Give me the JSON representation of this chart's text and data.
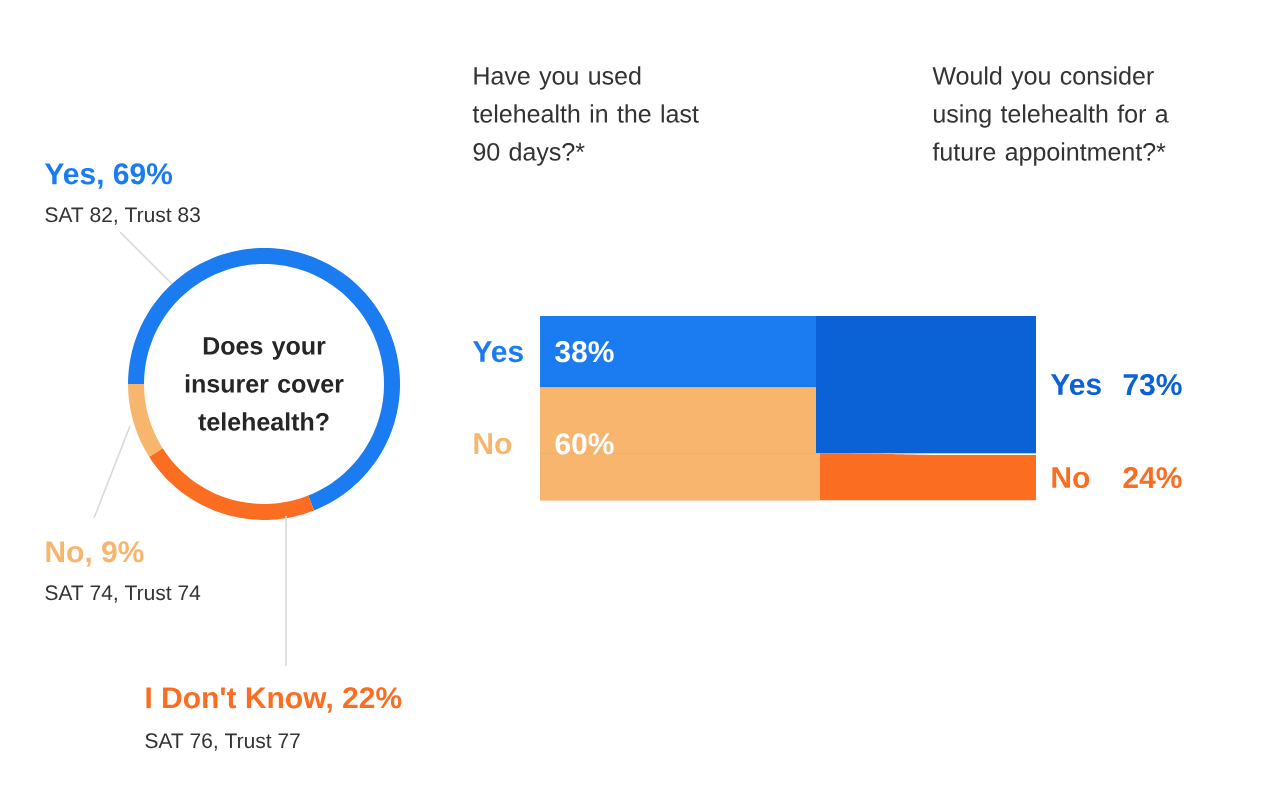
{
  "chart_data": [
    {
      "type": "donut",
      "title": "Does your insurer cover telehealth?",
      "categories": [
        "Yes, 69%",
        "I Don't Know, 22%",
        "No, 9%"
      ],
      "values": [
        69,
        22,
        9
      ],
      "colors": [
        "#1a7cf0",
        "#fb6e22",
        "#f8b56e"
      ],
      "annotations": [
        "SAT 82, Trust 83",
        "SAT 76, Trust 77",
        "SAT 74, Trust 74"
      ]
    },
    {
      "type": "other",
      "categories": [
        "Yes",
        "No"
      ],
      "series": [
        {
          "name": "Have you used telehealth in the last 90 days?*",
          "values": [
            38,
            60
          ],
          "value_labels": [
            "38%",
            "60%"
          ],
          "colors": [
            "#1a7cf0",
            "#f8b56e"
          ]
        },
        {
          "name": "Would you consider using telehealth for a future appointment?*",
          "values": [
            73,
            24
          ],
          "value_labels": [
            "73%",
            "24%"
          ],
          "colors": [
            "#0b62d6",
            "#fb6e22"
          ]
        }
      ]
    }
  ]
}
